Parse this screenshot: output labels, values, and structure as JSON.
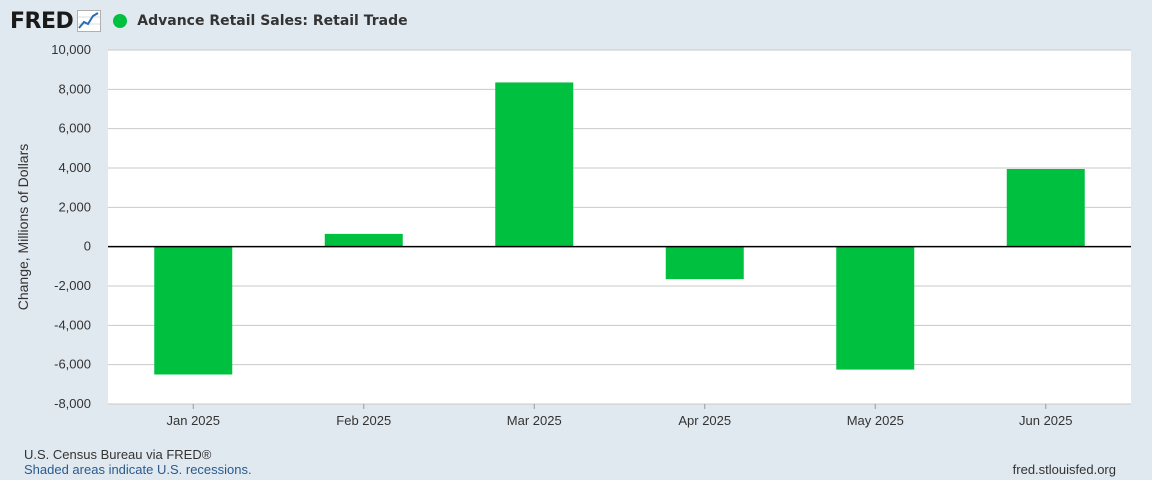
{
  "brand": {
    "logo_text": "FRED"
  },
  "colors": {
    "series": "#00c040",
    "background": "#e1e9f0",
    "plot": "#ffffff",
    "grid": "#c9c9c9"
  },
  "chart_data": {
    "type": "bar",
    "title": "Advance Retail Sales: Retail Trade",
    "xlabel": "",
    "ylabel": "Change, Millions of Dollars",
    "categories": [
      "Jan 2025",
      "Feb 2025",
      "Mar 2025",
      "Apr 2025",
      "May 2025",
      "Jun 2025"
    ],
    "series": [
      {
        "name": "Advance Retail Sales: Retail Trade",
        "values": [
          -6500,
          650,
          8350,
          -1650,
          -6250,
          3950
        ]
      }
    ],
    "ylim": [
      -8000,
      10000
    ],
    "yticks": [
      "10,000",
      "8,000",
      "6,000",
      "4,000",
      "2,000",
      "0",
      "-2,000",
      "-4,000",
      "-6,000",
      "-8,000"
    ],
    "ytick_values": [
      10000,
      8000,
      6000,
      4000,
      2000,
      0,
      -2000,
      -4000,
      -6000,
      -8000
    ],
    "grid": true,
    "legend": "top-left"
  },
  "footer": {
    "source": "U.S. Census Bureau via FRED®",
    "recession_note": "Shaded areas indicate U.S. recessions.",
    "site": "fred.stlouisfed.org"
  }
}
